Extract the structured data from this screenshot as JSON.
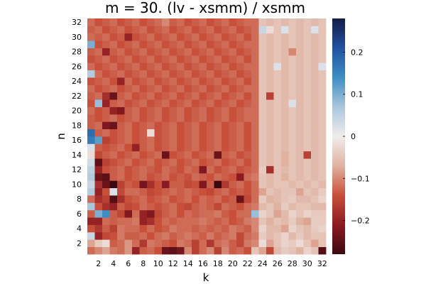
{
  "chart_data": {
    "type": "heatmap",
    "title": "m = 30. (lv - xsmm) / xsmm",
    "xlabel": "k",
    "ylabel": "n",
    "x_range": [
      1,
      32
    ],
    "y_range": [
      1,
      32
    ],
    "x_ticks": [
      2,
      4,
      6,
      8,
      10,
      12,
      14,
      16,
      18,
      20,
      22,
      24,
      26,
      28,
      30,
      32
    ],
    "y_ticks": [
      2,
      4,
      6,
      8,
      10,
      12,
      14,
      16,
      18,
      20,
      22,
      24,
      26,
      28,
      30,
      32
    ],
    "color_range": [
      -0.28,
      0.28
    ],
    "colorbar_ticks": [
      0.2,
      0.1,
      0,
      -0.1,
      -0.2
    ],
    "colorbar_tick_labels": [
      "0.2",
      "0.1",
      "0",
      "−0.1",
      "−0.2"
    ],
    "colormap": "balance",
    "colormap_stops": [
      "#3c0911",
      "#8c1a22",
      "#c8503a",
      "#e0b2a0",
      "#f1ecec",
      "#a9c6dd",
      "#3d8ec2",
      "#2152a0",
      "#151d44"
    ],
    "grid": false,
    "legend": "colorbar-right",
    "values_note_free": true,
    "z_rows_bottom_to_top": [
      [
        -0.12,
        -0.1,
        -0.08,
        -0.11,
        -0.12,
        -0.09,
        -0.2,
        -0.13,
        -0.12,
        -0.14,
        -0.24,
        -0.25,
        -0.23,
        -0.1,
        -0.16,
        -0.12,
        -0.1,
        -0.16,
        -0.1,
        -0.13,
        -0.12,
        -0.14,
        -0.05,
        -0.08,
        -0.15,
        -0.06,
        -0.04,
        -0.05,
        -0.07,
        -0.03,
        -0.05,
        -0.26
      ],
      [
        -0.08,
        -0.04,
        -0.02,
        -0.13,
        -0.12,
        -0.09,
        -0.12,
        -0.17,
        -0.11,
        -0.12,
        -0.13,
        -0.14,
        -0.11,
        -0.12,
        -0.16,
        -0.12,
        -0.17,
        -0.12,
        -0.11,
        -0.13,
        -0.15,
        -0.11,
        -0.1,
        -0.02,
        -0.08,
        -0.05,
        -0.03,
        -0.04,
        -0.02,
        -0.05,
        -0.08,
        -0.05
      ],
      [
        0.04,
        -0.2,
        -0.15,
        -0.14,
        -0.11,
        -0.13,
        -0.13,
        -0.12,
        -0.14,
        -0.12,
        -0.11,
        -0.13,
        -0.12,
        -0.11,
        -0.12,
        -0.13,
        -0.11,
        -0.13,
        -0.12,
        -0.11,
        -0.15,
        -0.12,
        -0.11,
        -0.04,
        -0.06,
        -0.05,
        -0.03,
        -0.06,
        -0.04,
        -0.06,
        -0.05,
        -0.05
      ],
      [
        -0.14,
        -0.17,
        -0.13,
        -0.16,
        -0.11,
        -0.12,
        -0.12,
        -0.14,
        -0.12,
        -0.14,
        -0.13,
        -0.11,
        -0.12,
        -0.12,
        -0.13,
        -0.12,
        -0.13,
        -0.12,
        -0.13,
        -0.11,
        -0.12,
        -0.13,
        -0.1,
        -0.03,
        -0.06,
        -0.06,
        -0.08,
        -0.03,
        -0.05,
        -0.06,
        -0.04,
        -0.03
      ],
      [
        -0.2,
        -0.2,
        -0.12,
        -0.13,
        -0.12,
        -0.12,
        -0.11,
        -0.2,
        -0.18,
        -0.14,
        -0.12,
        -0.13,
        -0.12,
        -0.12,
        -0.12,
        -0.11,
        -0.12,
        -0.13,
        -0.12,
        -0.14,
        -0.13,
        -0.11,
        -0.1,
        -0.05,
        -0.07,
        -0.05,
        -0.06,
        -0.04,
        -0.07,
        -0.08,
        -0.04,
        -0.04
      ],
      [
        -0.13,
        0.1,
        0.14,
        -0.13,
        -0.15,
        -0.22,
        -0.12,
        -0.2,
        -0.22,
        -0.15,
        -0.13,
        -0.12,
        -0.14,
        -0.12,
        -0.13,
        -0.12,
        -0.12,
        -0.11,
        -0.13,
        -0.14,
        -0.12,
        -0.12,
        0.08,
        -0.03,
        -0.05,
        -0.08,
        -0.06,
        -0.03,
        -0.05,
        -0.03,
        -0.04,
        -0.04
      ],
      [
        0.07,
        -0.14,
        -0.18,
        -0.2,
        -0.13,
        -0.15,
        -0.14,
        -0.12,
        -0.13,
        -0.14,
        -0.13,
        -0.12,
        -0.14,
        -0.15,
        -0.13,
        -0.12,
        -0.13,
        -0.15,
        -0.12,
        -0.13,
        -0.14,
        -0.12,
        -0.11,
        -0.06,
        -0.05,
        -0.07,
        -0.04,
        -0.06,
        -0.05,
        -0.05,
        -0.06,
        -0.06
      ],
      [
        -0.12,
        -0.18,
        -0.16,
        -0.26,
        -0.18,
        -0.14,
        -0.13,
        -0.12,
        -0.14,
        -0.13,
        -0.12,
        -0.14,
        -0.13,
        -0.12,
        -0.14,
        -0.12,
        -0.13,
        -0.12,
        -0.14,
        -0.13,
        -0.24,
        -0.15,
        -0.12,
        -0.04,
        -0.07,
        -0.06,
        -0.05,
        -0.04,
        -0.06,
        -0.06,
        -0.05,
        -0.03
      ],
      [
        0.06,
        -0.2,
        -0.14,
        0.02,
        -0.15,
        -0.12,
        -0.12,
        -0.13,
        -0.15,
        -0.14,
        -0.13,
        -0.12,
        -0.13,
        -0.12,
        -0.13,
        -0.14,
        -0.15,
        -0.13,
        -0.12,
        -0.14,
        -0.13,
        -0.14,
        -0.12,
        -0.08,
        -0.05,
        -0.06,
        -0.05,
        -0.05,
        -0.08,
        -0.05,
        -0.06,
        -0.04
      ],
      [
        0.04,
        -0.18,
        -0.24,
        -0.28,
        -0.16,
        -0.13,
        -0.14,
        -0.23,
        -0.18,
        -0.14,
        -0.21,
        -0.13,
        -0.13,
        -0.15,
        -0.14,
        -0.22,
        -0.13,
        -0.28,
        -0.17,
        -0.13,
        -0.12,
        -0.14,
        -0.12,
        -0.05,
        -0.06,
        -0.05,
        -0.05,
        -0.06,
        -0.05,
        -0.06,
        -0.05,
        -0.06
      ],
      [
        0.06,
        -0.24,
        -0.25,
        -0.13,
        -0.12,
        -0.14,
        -0.13,
        -0.12,
        -0.14,
        -0.13,
        -0.12,
        -0.14,
        -0.13,
        -0.14,
        -0.12,
        -0.13,
        -0.14,
        -0.12,
        -0.13,
        -0.14,
        -0.21,
        -0.12,
        -0.11,
        -0.05,
        -0.06,
        -0.05,
        -0.07,
        -0.05,
        -0.06,
        -0.05,
        -0.06,
        -0.05
      ],
      [
        0.05,
        -0.2,
        -0.14,
        -0.13,
        -0.12,
        -0.14,
        -0.13,
        -0.12,
        -0.13,
        -0.14,
        -0.12,
        -0.13,
        -0.14,
        -0.12,
        -0.13,
        -0.22,
        -0.12,
        -0.14,
        -0.13,
        -0.12,
        -0.14,
        -0.13,
        -0.12,
        -0.04,
        -0.18,
        -0.05,
        -0.06,
        -0.05,
        -0.06,
        -0.05,
        -0.06,
        -0.05
      ],
      [
        0.03,
        -0.25,
        -0.16,
        -0.14,
        -0.13,
        -0.12,
        -0.14,
        -0.13,
        -0.12,
        -0.14,
        -0.13,
        -0.12,
        -0.14,
        -0.13,
        -0.12,
        -0.14,
        -0.13,
        -0.12,
        -0.14,
        -0.13,
        -0.12,
        -0.14,
        -0.12,
        -0.05,
        -0.06,
        -0.05,
        -0.07,
        -0.05,
        -0.06,
        -0.05,
        -0.06,
        -0.05
      ],
      [
        -0.02,
        -0.15,
        -0.13,
        -0.12,
        -0.14,
        -0.13,
        -0.12,
        -0.14,
        -0.13,
        -0.12,
        -0.24,
        -0.14,
        -0.13,
        -0.12,
        -0.14,
        -0.13,
        -0.12,
        -0.24,
        -0.13,
        -0.12,
        -0.14,
        -0.13,
        -0.12,
        -0.05,
        -0.06,
        -0.05,
        -0.07,
        -0.05,
        -0.06,
        -0.16,
        -0.06,
        -0.05
      ],
      [
        0.02,
        -0.13,
        -0.14,
        -0.13,
        -0.12,
        -0.14,
        -0.2,
        -0.13,
        -0.12,
        -0.14,
        -0.13,
        -0.12,
        -0.14,
        -0.13,
        -0.12,
        -0.14,
        -0.13,
        -0.12,
        -0.14,
        -0.13,
        -0.12,
        -0.14,
        -0.12,
        -0.05,
        -0.06,
        -0.05,
        -0.06,
        -0.05,
        -0.06,
        -0.05,
        -0.06,
        -0.05
      ],
      [
        0.16,
        0.12,
        -0.16,
        -0.14,
        -0.13,
        -0.12,
        -0.14,
        -0.13,
        -0.12,
        -0.14,
        -0.13,
        -0.12,
        -0.14,
        -0.13,
        -0.12,
        -0.14,
        -0.13,
        -0.12,
        -0.14,
        -0.13,
        -0.12,
        -0.14,
        -0.12,
        -0.05,
        -0.06,
        -0.05,
        -0.06,
        -0.05,
        -0.06,
        -0.05,
        -0.06,
        -0.05
      ],
      [
        0.18,
        -0.13,
        -0.12,
        -0.14,
        -0.13,
        -0.12,
        -0.14,
        -0.13,
        -0.02,
        -0.14,
        -0.13,
        -0.12,
        -0.14,
        -0.13,
        -0.12,
        -0.14,
        -0.13,
        -0.12,
        -0.14,
        -0.13,
        -0.12,
        -0.14,
        -0.12,
        -0.05,
        -0.06,
        -0.05,
        -0.06,
        -0.05,
        -0.06,
        -0.05,
        -0.06,
        -0.05
      ],
      [
        -0.13,
        -0.12,
        -0.22,
        -0.24,
        -0.13,
        -0.12,
        -0.14,
        -0.13,
        -0.12,
        -0.14,
        -0.13,
        -0.12,
        -0.14,
        -0.13,
        -0.12,
        -0.14,
        -0.13,
        -0.12,
        -0.14,
        -0.13,
        -0.12,
        -0.14,
        -0.12,
        -0.05,
        -0.06,
        -0.05,
        -0.06,
        -0.05,
        -0.06,
        -0.05,
        -0.06,
        -0.05
      ],
      [
        -0.13,
        -0.14,
        -0.13,
        -0.12,
        -0.14,
        -0.13,
        -0.12,
        -0.14,
        -0.13,
        -0.12,
        -0.14,
        -0.13,
        -0.12,
        -0.14,
        -0.13,
        -0.12,
        -0.14,
        -0.13,
        -0.12,
        -0.14,
        -0.13,
        -0.12,
        -0.12,
        -0.05,
        -0.06,
        -0.05,
        -0.06,
        -0.05,
        -0.06,
        -0.05,
        -0.06,
        -0.05
      ],
      [
        -0.12,
        -0.14,
        -0.13,
        -0.2,
        -0.22,
        -0.13,
        -0.12,
        -0.14,
        -0.13,
        -0.12,
        -0.14,
        -0.13,
        -0.12,
        -0.14,
        -0.13,
        -0.12,
        -0.14,
        -0.13,
        -0.12,
        -0.14,
        -0.13,
        -0.12,
        -0.12,
        -0.05,
        -0.06,
        -0.05,
        -0.06,
        -0.05,
        -0.06,
        -0.05,
        -0.06,
        -0.05
      ],
      [
        -0.14,
        0.08,
        -0.2,
        -0.13,
        -0.12,
        -0.14,
        -0.13,
        -0.12,
        -0.14,
        -0.13,
        -0.12,
        -0.14,
        -0.13,
        -0.12,
        -0.14,
        -0.13,
        -0.12,
        -0.14,
        -0.13,
        -0.12,
        -0.14,
        -0.13,
        -0.12,
        -0.05,
        -0.06,
        -0.05,
        -0.06,
        0.02,
        -0.06,
        -0.05,
        -0.06,
        -0.05
      ],
      [
        -0.13,
        -0.12,
        -0.18,
        -0.24,
        -0.13,
        -0.12,
        -0.14,
        -0.13,
        -0.12,
        -0.14,
        -0.13,
        -0.12,
        -0.14,
        -0.13,
        -0.12,
        -0.14,
        -0.13,
        -0.12,
        -0.14,
        -0.13,
        -0.12,
        -0.14,
        -0.12,
        -0.05,
        -0.16,
        -0.05,
        -0.06,
        -0.05,
        -0.06,
        -0.05,
        -0.06,
        -0.05
      ],
      [
        -0.12,
        -0.14,
        -0.13,
        -0.12,
        -0.14,
        -0.13,
        -0.12,
        -0.14,
        -0.13,
        -0.12,
        -0.14,
        -0.13,
        -0.12,
        -0.14,
        -0.13,
        -0.12,
        -0.14,
        -0.13,
        -0.12,
        -0.14,
        -0.13,
        -0.12,
        -0.12,
        -0.05,
        -0.06,
        -0.05,
        -0.06,
        -0.05,
        -0.06,
        -0.05,
        -0.06,
        -0.05
      ],
      [
        -0.14,
        -0.13,
        -0.12,
        -0.14,
        -0.2,
        -0.12,
        -0.14,
        -0.13,
        -0.12,
        -0.14,
        -0.13,
        -0.12,
        -0.14,
        -0.13,
        -0.12,
        -0.14,
        -0.13,
        -0.12,
        -0.14,
        -0.13,
        -0.12,
        -0.14,
        -0.12,
        -0.05,
        -0.06,
        -0.05,
        -0.06,
        -0.05,
        -0.06,
        -0.05,
        -0.06,
        -0.05
      ],
      [
        0.06,
        -0.12,
        -0.14,
        -0.13,
        -0.12,
        -0.14,
        -0.13,
        -0.12,
        -0.14,
        -0.13,
        -0.12,
        -0.14,
        -0.13,
        -0.12,
        -0.14,
        -0.13,
        -0.12,
        -0.14,
        -0.13,
        -0.12,
        -0.14,
        -0.13,
        -0.12,
        -0.05,
        -0.06,
        -0.05,
        -0.06,
        -0.05,
        -0.06,
        -0.05,
        -0.06,
        -0.05
      ],
      [
        -0.12,
        -0.14,
        -0.13,
        -0.12,
        -0.14,
        -0.13,
        -0.12,
        -0.14,
        -0.13,
        -0.12,
        -0.14,
        -0.13,
        -0.12,
        -0.14,
        -0.13,
        -0.12,
        -0.14,
        -0.13,
        -0.12,
        -0.14,
        -0.13,
        -0.12,
        -0.12,
        -0.05,
        -0.06,
        0.02,
        -0.06,
        -0.05,
        -0.06,
        -0.05,
        -0.06,
        0.02
      ],
      [
        -0.14,
        -0.13,
        -0.12,
        -0.14,
        -0.13,
        -0.12,
        -0.14,
        -0.13,
        -0.12,
        -0.14,
        -0.13,
        -0.12,
        -0.14,
        -0.13,
        -0.12,
        -0.14,
        -0.13,
        -0.12,
        -0.14,
        -0.13,
        -0.12,
        -0.14,
        -0.12,
        -0.05,
        -0.06,
        -0.05,
        -0.06,
        -0.05,
        -0.06,
        -0.05,
        -0.06,
        -0.05
      ],
      [
        -0.13,
        -0.12,
        -0.2,
        -0.13,
        -0.12,
        -0.14,
        -0.13,
        -0.12,
        -0.14,
        -0.13,
        -0.12,
        -0.14,
        -0.13,
        -0.12,
        -0.14,
        -0.13,
        -0.12,
        -0.14,
        -0.13,
        -0.12,
        -0.14,
        -0.13,
        -0.12,
        -0.05,
        -0.06,
        -0.05,
        -0.06,
        -0.1,
        -0.06,
        -0.05,
        -0.06,
        -0.05
      ],
      [
        0.1,
        -0.14,
        -0.13,
        -0.12,
        -0.14,
        -0.13,
        -0.12,
        -0.14,
        -0.13,
        -0.12,
        -0.14,
        -0.13,
        -0.12,
        -0.14,
        -0.13,
        -0.12,
        -0.14,
        -0.13,
        -0.12,
        -0.14,
        -0.13,
        -0.12,
        -0.12,
        -0.05,
        -0.06,
        -0.05,
        -0.06,
        -0.05,
        -0.06,
        -0.05,
        -0.06,
        -0.05
      ],
      [
        -0.12,
        -0.13,
        -0.12,
        -0.14,
        -0.13,
        -0.2,
        -0.14,
        -0.13,
        -0.12,
        -0.14,
        -0.13,
        -0.12,
        -0.14,
        -0.13,
        -0.12,
        -0.14,
        -0.13,
        -0.12,
        -0.14,
        -0.13,
        -0.12,
        -0.14,
        -0.12,
        -0.05,
        -0.06,
        -0.05,
        -0.06,
        -0.05,
        -0.06,
        -0.05,
        -0.06,
        -0.05
      ],
      [
        -0.13,
        -0.12,
        -0.14,
        -0.13,
        -0.12,
        -0.14,
        -0.13,
        -0.12,
        -0.14,
        -0.13,
        -0.12,
        -0.14,
        -0.13,
        -0.12,
        -0.14,
        -0.13,
        -0.12,
        -0.14,
        -0.13,
        -0.12,
        -0.14,
        -0.13,
        -0.12,
        0.04,
        -0.02,
        -0.05,
        0.02,
        -0.05,
        -0.06,
        -0.05,
        0.02,
        -0.05
      ],
      [
        -0.12,
        -0.14,
        -0.13,
        -0.12,
        -0.14,
        -0.13,
        -0.12,
        -0.14,
        -0.13,
        -0.12,
        -0.1,
        -0.13,
        -0.12,
        -0.14,
        -0.13,
        -0.12,
        -0.14,
        -0.13,
        -0.12,
        -0.14,
        -0.13,
        -0.12,
        -0.12,
        -0.05,
        -0.06,
        -0.05,
        -0.06,
        -0.05,
        -0.06,
        -0.05,
        -0.06,
        -0.05
      ]
    ]
  }
}
